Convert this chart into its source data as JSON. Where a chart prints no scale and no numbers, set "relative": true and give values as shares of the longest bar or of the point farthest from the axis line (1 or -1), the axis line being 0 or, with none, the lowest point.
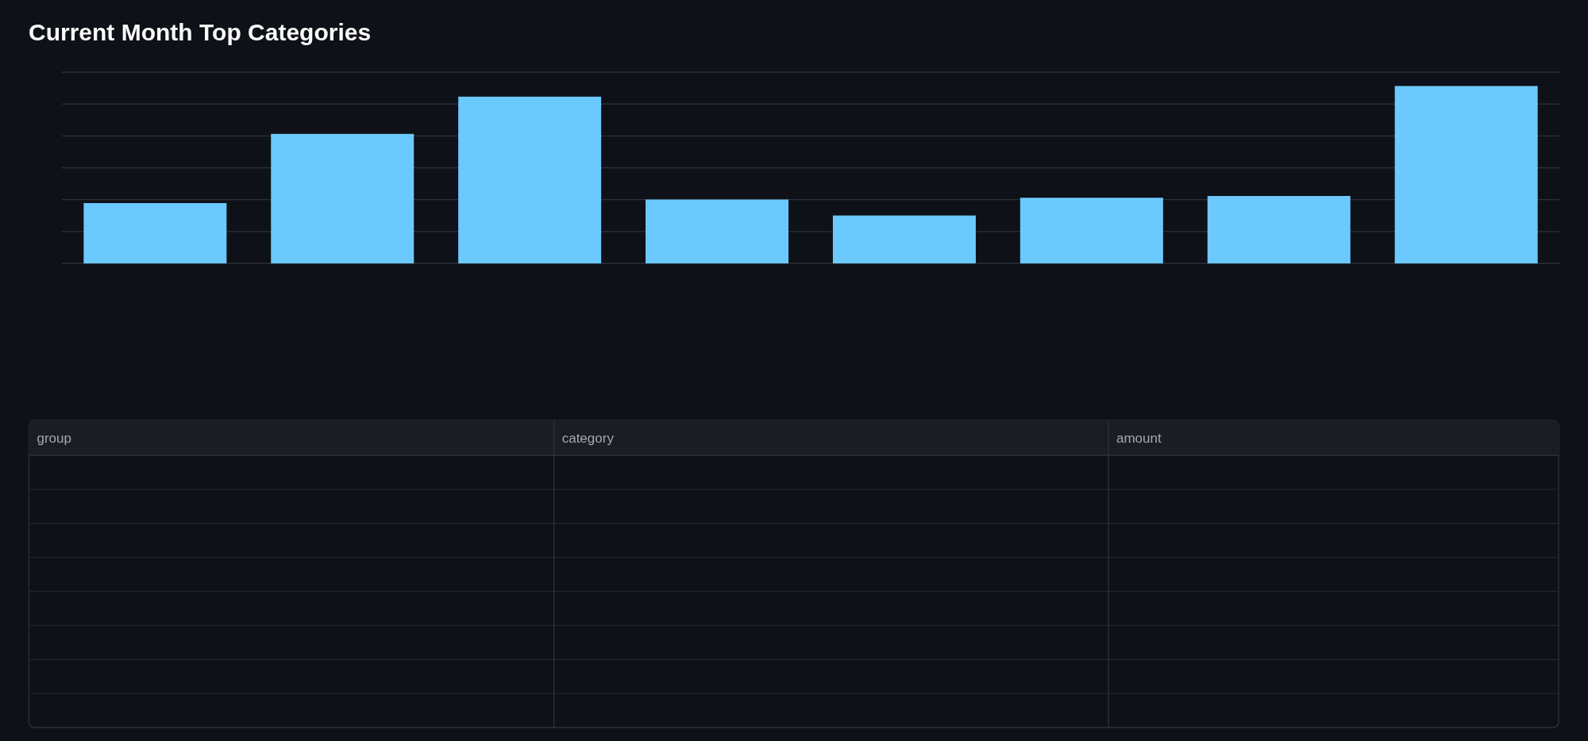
{
  "chart_data": [
    {
      "type": "bar",
      "title": "Current Month Top Categories",
      "categories": [
        null,
        null,
        null,
        null,
        null,
        null,
        null,
        null
      ],
      "values": [
        0.34,
        0.73,
        0.94,
        0.36,
        0.27,
        0.37,
        0.38,
        1
      ],
      "color": "#6cc9fe",
      "relative": true,
      "grid": "y"
    },
    {
      "type": "other",
      "annotations": [
        "group",
        "category",
        "amount"
      ]
    }
  ]
}
